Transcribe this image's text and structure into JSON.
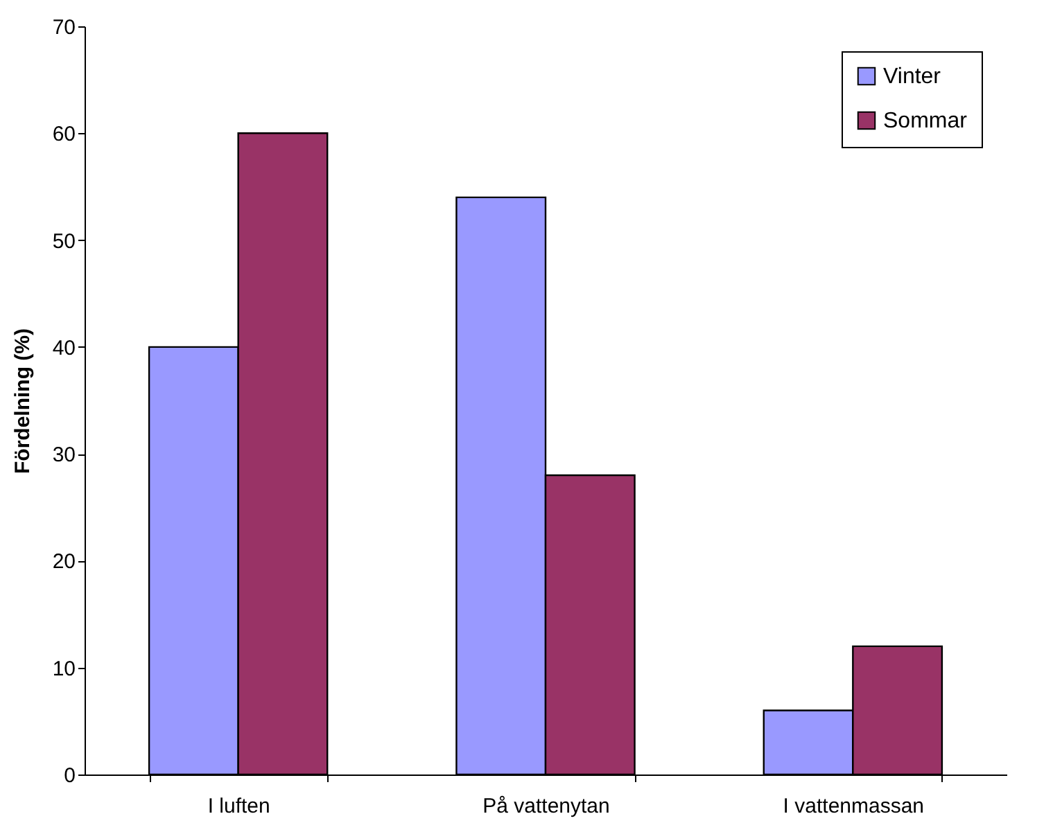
{
  "chart_data": {
    "type": "bar",
    "ylabel": "Fördelning (%)",
    "categories": [
      "I luften",
      "På vattenytan",
      "I vattenmassan"
    ],
    "series": [
      {
        "name": "Vinter",
        "color": "#9999ff",
        "values": [
          40,
          54,
          6
        ]
      },
      {
        "name": "Sommar",
        "color": "#993366",
        "values": [
          60,
          28,
          12
        ]
      }
    ],
    "ylim": [
      0,
      70
    ],
    "yticks": [
      0,
      10,
      20,
      30,
      40,
      50,
      60,
      70
    ],
    "grid": false,
    "legend": "top right"
  }
}
